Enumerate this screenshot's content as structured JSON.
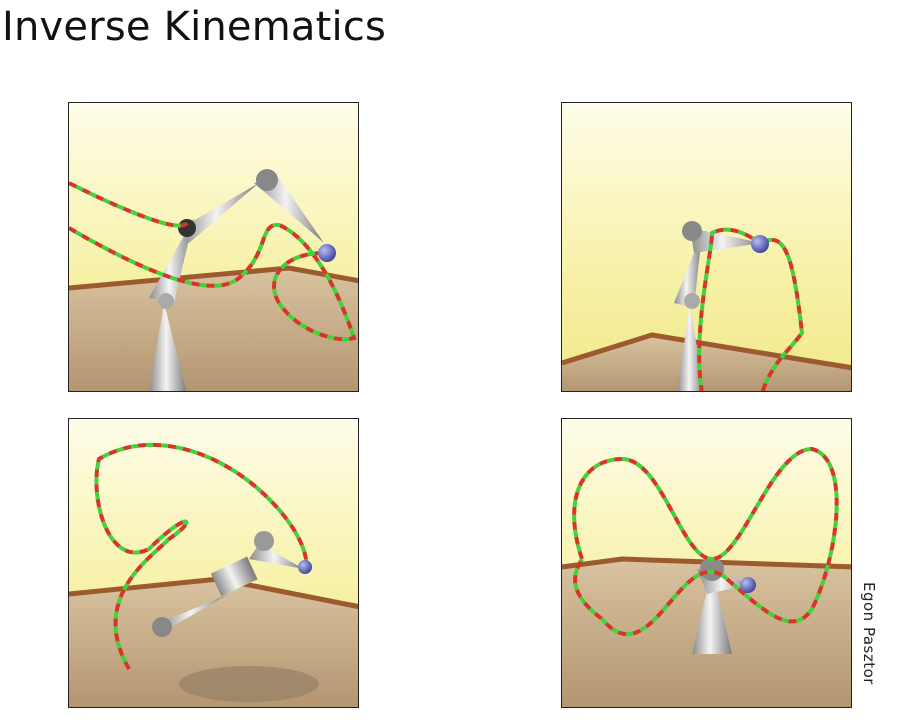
{
  "slide": {
    "title": "Inverse Kinematics",
    "credit": "Egon Pasztor"
  },
  "panels": [
    {
      "name": "ik-frame-1",
      "description_label": ""
    },
    {
      "name": "ik-frame-2",
      "description_label": ""
    },
    {
      "name": "ik-frame-3",
      "description_label": ""
    },
    {
      "name": "ik-frame-4",
      "description_label": ""
    }
  ],
  "colors": {
    "wall_light": "#fdfbd8",
    "wall_yellow": "#f6ef9a",
    "floor": "#c9ad87",
    "baseboard": "#9c5a2e",
    "curve_red": "#d8352a",
    "curve_green": "#3fd43a",
    "joint_metal": "#b9b9b9",
    "effector": "#6a6fc8"
  }
}
